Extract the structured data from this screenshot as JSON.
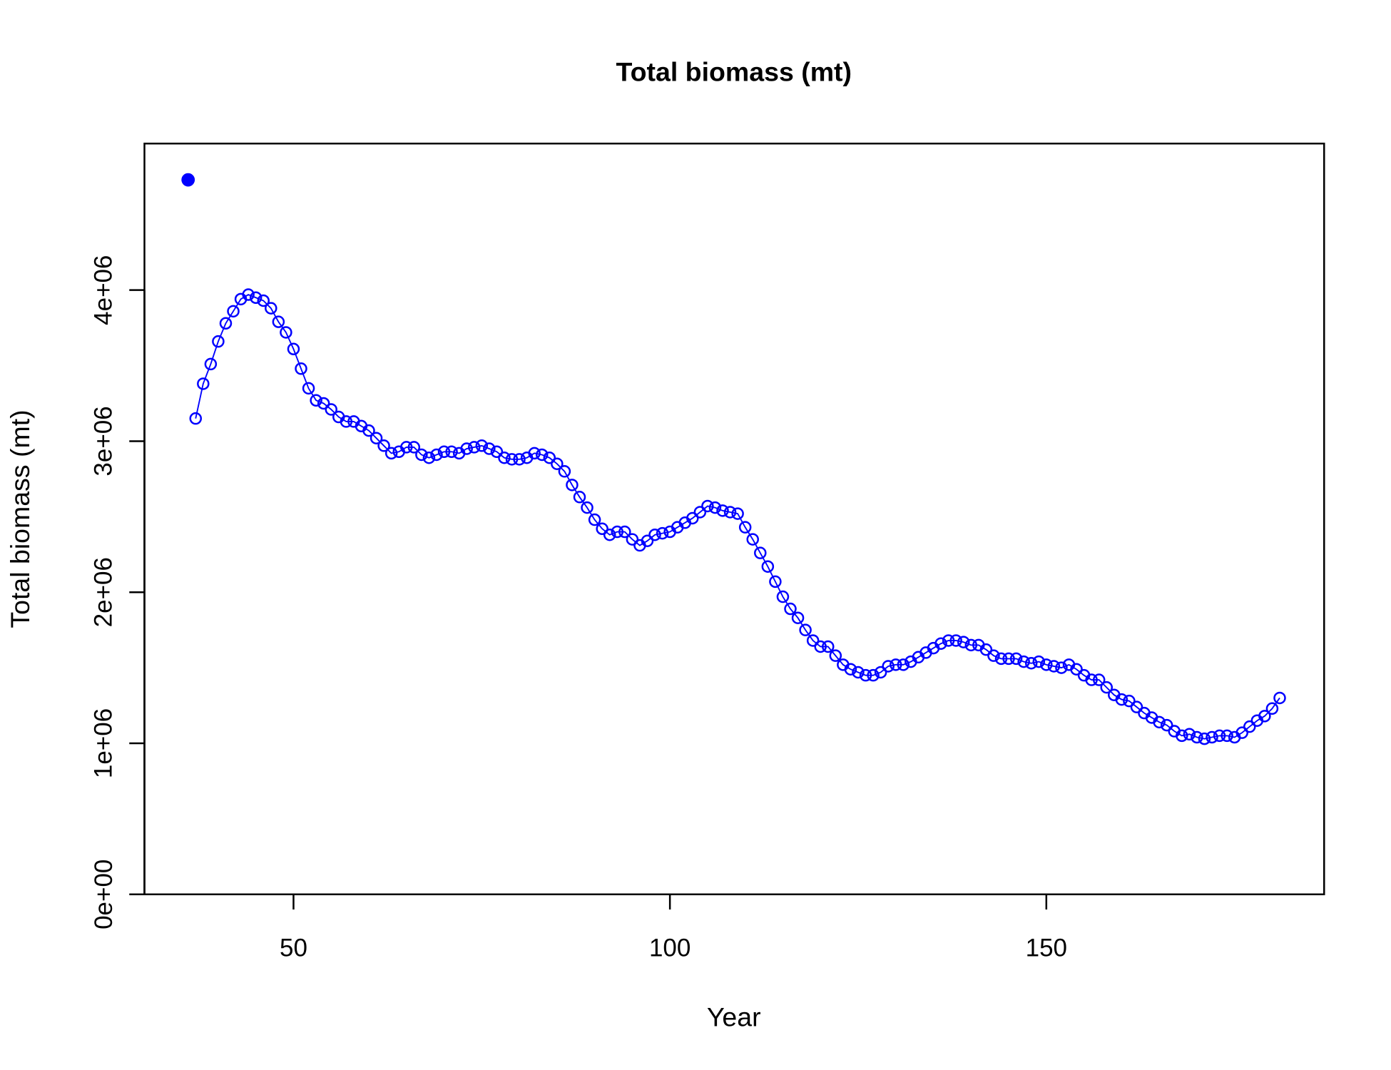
{
  "chart_data": {
    "type": "line",
    "title": "Total biomass (mt)",
    "x_label": "Year",
    "y_label": "Total biomass (mt)",
    "xlim": [
      30.2,
      186.9
    ],
    "xticks": [
      50,
      100,
      150
    ],
    "ylim": [
      0,
      4970000
    ],
    "yticks": [
      {
        "value": 0,
        "label": "0e+00"
      },
      {
        "value": 1000000,
        "label": "1e+06"
      },
      {
        "value": 2000000,
        "label": "2e+06"
      },
      {
        "value": 3000000,
        "label": "3e+06"
      },
      {
        "value": 4000000,
        "label": "4e+06"
      }
    ],
    "series": [
      {
        "color": "#0000ff",
        "marker": "open-circle",
        "line": true,
        "x": [
          37,
          38,
          39,
          40,
          41,
          42,
          43,
          44,
          45,
          46,
          47,
          48,
          49,
          50,
          51,
          52,
          53,
          54,
          55,
          56,
          57,
          58,
          59,
          60,
          61,
          62,
          63,
          64,
          65,
          66,
          67,
          68,
          69,
          70,
          71,
          72,
          73,
          74,
          75,
          76,
          77,
          78,
          79,
          80,
          81,
          82,
          83,
          84,
          85,
          86,
          87,
          88,
          89,
          90,
          91,
          92,
          93,
          94,
          95,
          96,
          97,
          98,
          99,
          100,
          101,
          102,
          103,
          104,
          105,
          106,
          107,
          108,
          109,
          110,
          111,
          112,
          113,
          114,
          115,
          116,
          117,
          118,
          119,
          120,
          121,
          122,
          123,
          124,
          125,
          126,
          127,
          128,
          129,
          130,
          131,
          132,
          133,
          134,
          135,
          136,
          137,
          138,
          139,
          140,
          141,
          142,
          143,
          144,
          145,
          146,
          147,
          148,
          149,
          150,
          151,
          152,
          153,
          154,
          155,
          156,
          157,
          158,
          159,
          160,
          161,
          162,
          163,
          164,
          165,
          166,
          167,
          168,
          169,
          170,
          171,
          172,
          173,
          174,
          175,
          176,
          177,
          178,
          179,
          180,
          181
        ],
        "values": [
          3150000,
          3380000,
          3510000,
          3660000,
          3780000,
          3860000,
          3940000,
          3970000,
          3950000,
          3930000,
          3880000,
          3790000,
          3720000,
          3610000,
          3480000,
          3350000,
          3270000,
          3250000,
          3210000,
          3160000,
          3130000,
          3130000,
          3100000,
          3070000,
          3020000,
          2970000,
          2920000,
          2930000,
          2960000,
          2960000,
          2910000,
          2890000,
          2910000,
          2930000,
          2930000,
          2920000,
          2950000,
          2960000,
          2970000,
          2950000,
          2930000,
          2890000,
          2880000,
          2880000,
          2890000,
          2920000,
          2910000,
          2890000,
          2850000,
          2800000,
          2710000,
          2630000,
          2560000,
          2480000,
          2420000,
          2380000,
          2400000,
          2400000,
          2350000,
          2310000,
          2340000,
          2380000,
          2390000,
          2400000,
          2430000,
          2460000,
          2490000,
          2530000,
          2570000,
          2560000,
          2540000,
          2530000,
          2520000,
          2430000,
          2350000,
          2260000,
          2170000,
          2070000,
          1970000,
          1890000,
          1830000,
          1750000,
          1680000,
          1640000,
          1640000,
          1580000,
          1520000,
          1490000,
          1470000,
          1450000,
          1450000,
          1470000,
          1510000,
          1520000,
          1520000,
          1540000,
          1570000,
          1600000,
          1630000,
          1660000,
          1680000,
          1680000,
          1670000,
          1650000,
          1650000,
          1620000,
          1580000,
          1560000,
          1560000,
          1560000,
          1540000,
          1530000,
          1540000,
          1520000,
          1510000,
          1500000,
          1520000,
          1490000,
          1450000,
          1420000,
          1420000,
          1370000,
          1320000,
          1290000,
          1280000,
          1240000,
          1200000,
          1170000,
          1140000,
          1120000,
          1080000,
          1050000,
          1060000,
          1040000,
          1030000,
          1040000,
          1050000,
          1050000,
          1040000,
          1070000,
          1110000,
          1150000,
          1180000,
          1230000,
          1300000
        ]
      },
      {
        "color": "#0000ff",
        "marker": "filled-circle",
        "line": false,
        "x": [
          36
        ],
        "values": [
          4730000
        ]
      }
    ]
  }
}
